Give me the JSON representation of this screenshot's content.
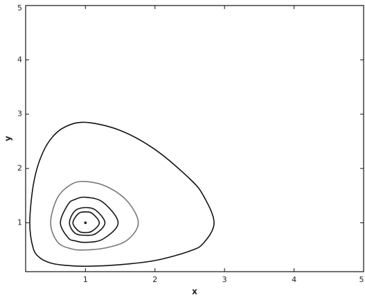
{
  "chart_data": {
    "type": "phase",
    "xlabel": "x",
    "ylabel": "y",
    "xlim": [
      0.14,
      5
    ],
    "ylim": [
      0.1,
      5
    ],
    "xticks": [
      1,
      2,
      3,
      4,
      5
    ],
    "yticks": [
      1,
      2,
      3,
      4,
      5
    ],
    "series": [
      {
        "color": "#111111",
        "x": [
          0.2,
          0.25,
          0.35,
          0.5,
          0.7,
          1,
          1.5,
          2,
          2.5,
          2.7,
          2.85,
          2.7,
          2.5,
          2,
          1.5,
          1,
          0.7,
          0.5,
          0.35,
          0.25
        ],
        "y": [
          1,
          1.69,
          2.18,
          2.54,
          2.76,
          2.85,
          2.7,
          2.35,
          1.81,
          1.49,
          1,
          0.63,
          0.48,
          0.305,
          0.229,
          0.2,
          0.218,
          0.26,
          0.35,
          0.53
        ]
      },
      {
        "color": "#777777",
        "x": [
          0.5,
          0.6,
          0.8,
          1,
          1.3,
          1.6,
          1.76,
          1.6,
          1.3,
          1,
          0.8,
          0.6
        ],
        "y": [
          1,
          1.465,
          1.71,
          1.76,
          1.67,
          1.4,
          1,
          0.68,
          0.54,
          0.5,
          0.52,
          0.645
        ]
      },
      {
        "color": "#111111",
        "x": [
          0.64,
          0.75,
          0.85,
          1,
          1.25,
          1.47,
          1.25,
          1,
          0.85,
          0.75
        ],
        "y": [
          1,
          1.34,
          1.43,
          1.47,
          1.38,
          1,
          0.7,
          0.64,
          0.668,
          0.725
        ]
      },
      {
        "color": "#111111",
        "x": [
          0.77,
          0.85,
          1,
          1.15,
          1.28,
          1.15,
          1,
          0.85
        ],
        "y": [
          1,
          1.22,
          1.28,
          1.23,
          1,
          0.8,
          0.77,
          0.81
        ]
      },
      {
        "color": "#111111",
        "x": [
          0.82,
          0.9,
          1,
          1.1,
          1.2,
          1.1,
          1,
          0.9
        ],
        "y": [
          1,
          1.17,
          1.2,
          1.17,
          1,
          0.85,
          0.82,
          0.85
        ]
      },
      {
        "color": "#111111",
        "x": [
          1
        ],
        "y": [
          1
        ]
      }
    ]
  }
}
